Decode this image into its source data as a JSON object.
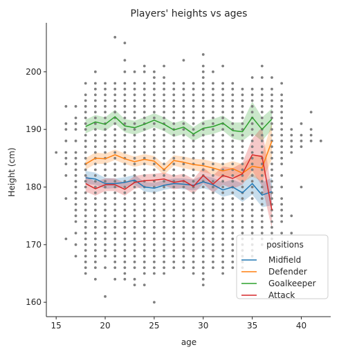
{
  "chart_data": {
    "type": "line",
    "title": "Players' heights vs ages",
    "xlabel": "age",
    "ylabel": "Height (cm)",
    "xlim": [
      14,
      43
    ],
    "ylim": [
      157.5,
      208.5
    ],
    "x_ticks": [
      15,
      20,
      25,
      30,
      35,
      40
    ],
    "y_ticks": [
      160,
      170,
      180,
      190,
      200
    ],
    "grid": false,
    "legend": {
      "title": "positions",
      "placement": "bottom-right"
    },
    "colors": {
      "scatter": "#7f7f7f",
      "Midfield": "#1f77b4",
      "Defender": "#ff7f0e",
      "Goalkeeper": "#2ca02c",
      "Attack": "#d62728"
    },
    "x": [
      18,
      19,
      20,
      21,
      22,
      23,
      24,
      25,
      26,
      27,
      28,
      29,
      30,
      31,
      32,
      33,
      34,
      35,
      36,
      37
    ],
    "series": [
      {
        "name": "Midfield",
        "values": [
          181.6,
          181.4,
          180.6,
          180.6,
          180.8,
          181.2,
          180.0,
          179.8,
          180.3,
          180.6,
          180.5,
          180.3,
          180.9,
          180.4,
          179.5,
          180.0,
          179.0,
          180.6,
          178.6,
          179.2
        ],
        "ci_low": [
          180.5,
          180.4,
          179.7,
          179.8,
          180.0,
          180.4,
          179.2,
          179.0,
          179.5,
          179.8,
          179.6,
          179.4,
          179.8,
          179.3,
          178.3,
          178.7,
          177.4,
          178.7,
          176.5,
          176.8
        ],
        "ci_high": [
          182.8,
          182.5,
          181.6,
          181.5,
          181.7,
          182.1,
          180.9,
          180.7,
          181.2,
          181.5,
          181.5,
          181.3,
          182.0,
          181.6,
          180.8,
          181.3,
          180.6,
          182.5,
          180.8,
          181.6
        ]
      },
      {
        "name": "Defender",
        "values": [
          184.0,
          185.0,
          184.9,
          185.6,
          184.9,
          184.4,
          184.8,
          184.5,
          183.0,
          184.6,
          184.3,
          183.9,
          183.7,
          183.3,
          182.8,
          183.2,
          182.4,
          183.6,
          183.3,
          188.0
        ],
        "ci_low": [
          183.0,
          184.0,
          184.0,
          184.7,
          184.0,
          183.5,
          183.9,
          183.6,
          182.1,
          183.7,
          183.3,
          182.9,
          182.6,
          182.2,
          181.6,
          181.9,
          180.8,
          181.8,
          181.0,
          184.8
        ],
        "ci_high": [
          185.0,
          186.0,
          185.8,
          186.5,
          185.8,
          185.3,
          185.7,
          185.4,
          183.9,
          185.5,
          185.3,
          184.9,
          184.8,
          184.4,
          184.0,
          184.5,
          184.0,
          185.4,
          185.6,
          191.2
        ]
      },
      {
        "name": "Goalkeeper",
        "values": [
          190.5,
          191.3,
          190.9,
          192.2,
          190.6,
          190.3,
          190.9,
          191.6,
          190.9,
          189.9,
          190.4,
          189.2,
          190.2,
          190.5,
          191.1,
          189.8,
          189.6,
          192.1,
          190.0,
          191.8
        ],
        "ci_low": [
          189.3,
          190.1,
          189.7,
          191.0,
          189.5,
          189.1,
          189.7,
          190.4,
          189.7,
          188.7,
          189.2,
          188.0,
          188.9,
          189.2,
          189.8,
          188.4,
          188.0,
          189.3,
          188.0,
          190.0
        ],
        "ci_high": [
          191.7,
          192.5,
          192.1,
          193.4,
          191.8,
          191.5,
          192.1,
          192.8,
          192.1,
          191.1,
          191.6,
          190.4,
          191.5,
          191.8,
          192.4,
          191.2,
          191.2,
          194.8,
          192.1,
          193.6
        ]
      },
      {
        "name": "Attack",
        "values": [
          180.6,
          179.7,
          180.4,
          180.4,
          179.6,
          180.8,
          181.1,
          181.2,
          181.4,
          180.8,
          181.1,
          180.1,
          182.0,
          180.5,
          182.0,
          181.5,
          182.3,
          185.6,
          185.3,
          176.0
        ],
        "ci_low": [
          179.2,
          178.5,
          179.3,
          179.3,
          178.5,
          179.7,
          180.0,
          180.1,
          180.3,
          179.6,
          179.9,
          178.8,
          180.6,
          179.0,
          180.4,
          179.7,
          180.4,
          182.8,
          180.2,
          172.8
        ],
        "ci_high": [
          182.0,
          180.9,
          181.5,
          181.5,
          180.7,
          181.9,
          182.2,
          182.3,
          182.5,
          182.0,
          182.3,
          181.4,
          183.4,
          182.0,
          183.6,
          183.3,
          184.2,
          188.4,
          190.4,
          179.2
        ]
      }
    ],
    "scatter_columns": [
      {
        "x": 15,
        "y": [
          186
        ]
      },
      {
        "x": 16,
        "y": [
          171,
          178,
          182,
          184,
          185,
          186,
          188,
          190,
          191,
          194
        ]
      },
      {
        "x": 17,
        "y": [
          168,
          170,
          172,
          174,
          175,
          176,
          177,
          178,
          179,
          180,
          181,
          182,
          183,
          184,
          185,
          186,
          188,
          190,
          191,
          192,
          194
        ]
      },
      {
        "x": 18,
        "y": [
          165,
          166,
          167,
          168,
          169,
          170,
          171,
          172,
          173,
          174,
          175,
          176,
          177,
          178,
          179,
          180,
          181,
          182,
          183,
          184,
          185,
          186,
          187,
          188,
          189,
          190,
          191,
          192,
          193,
          194,
          195,
          196,
          198
        ]
      },
      {
        "x": 19,
        "y": [
          164,
          166,
          167,
          168,
          169,
          170,
          171,
          172,
          173,
          174,
          175,
          176,
          177,
          178,
          179,
          180,
          181,
          182,
          183,
          184,
          185,
          186,
          187,
          188,
          189,
          190,
          191,
          192,
          193,
          194,
          195,
          196,
          197,
          198,
          200
        ]
      },
      {
        "x": 20,
        "y": [
          161,
          166,
          168,
          169,
          170,
          171,
          172,
          173,
          174,
          175,
          176,
          177,
          178,
          179,
          180,
          181,
          182,
          183,
          184,
          185,
          186,
          187,
          188,
          189,
          190,
          191,
          192,
          193,
          194,
          195,
          196,
          197,
          198
        ]
      },
      {
        "x": 21,
        "y": [
          164,
          166,
          167,
          168,
          169,
          170,
          171,
          172,
          173,
          174,
          175,
          176,
          177,
          178,
          179,
          180,
          181,
          182,
          183,
          184,
          185,
          186,
          187,
          188,
          189,
          190,
          191,
          192,
          193,
          194,
          195,
          196,
          197,
          198,
          206
        ]
      },
      {
        "x": 22,
        "y": [
          164,
          165,
          166,
          167,
          168,
          169,
          170,
          171,
          172,
          173,
          174,
          175,
          176,
          177,
          178,
          179,
          180,
          181,
          182,
          183,
          184,
          185,
          186,
          187,
          188,
          189,
          190,
          191,
          192,
          193,
          194,
          195,
          196,
          197,
          198,
          200,
          202,
          205
        ]
      },
      {
        "x": 23,
        "y": [
          163,
          164,
          166,
          167,
          168,
          169,
          170,
          171,
          172,
          173,
          174,
          175,
          176,
          177,
          178,
          179,
          180,
          181,
          182,
          183,
          184,
          185,
          186,
          187,
          188,
          189,
          190,
          191,
          192,
          193,
          194,
          195,
          196,
          197,
          198,
          200
        ]
      },
      {
        "x": 24,
        "y": [
          163,
          165,
          166,
          167,
          168,
          169,
          170,
          171,
          172,
          173,
          174,
          175,
          176,
          177,
          178,
          179,
          180,
          181,
          182,
          183,
          184,
          185,
          186,
          187,
          188,
          189,
          190,
          191,
          192,
          193,
          194,
          195,
          196,
          197,
          198,
          200,
          201
        ]
      },
      {
        "x": 25,
        "y": [
          160,
          165,
          166,
          167,
          168,
          169,
          170,
          171,
          172,
          173,
          174,
          175,
          176,
          177,
          178,
          179,
          180,
          181,
          182,
          183,
          184,
          185,
          186,
          187,
          188,
          189,
          190,
          191,
          192,
          193,
          194,
          195,
          196,
          197,
          198,
          199,
          200
        ]
      },
      {
        "x": 26,
        "y": [
          165,
          166,
          167,
          168,
          169,
          170,
          171,
          172,
          173,
          174,
          175,
          176,
          177,
          178,
          179,
          180,
          181,
          182,
          183,
          184,
          185,
          186,
          187,
          188,
          189,
          190,
          191,
          192,
          193,
          194,
          195,
          196,
          197,
          198,
          199,
          201
        ]
      },
      {
        "x": 27,
        "y": [
          166,
          167,
          168,
          169,
          170,
          171,
          172,
          173,
          174,
          175,
          176,
          177,
          178,
          179,
          180,
          181,
          182,
          183,
          184,
          185,
          186,
          187,
          188,
          189,
          190,
          191,
          192,
          193,
          194,
          195,
          196,
          197,
          198
        ]
      },
      {
        "x": 28,
        "y": [
          166,
          167,
          168,
          169,
          170,
          171,
          172,
          173,
          174,
          175,
          176,
          177,
          178,
          179,
          180,
          181,
          182,
          183,
          184,
          185,
          186,
          187,
          188,
          189,
          190,
          191,
          192,
          193,
          194,
          195,
          196,
          197,
          198,
          202
        ]
      },
      {
        "x": 29,
        "y": [
          165,
          166,
          167,
          168,
          169,
          170,
          171,
          172,
          173,
          174,
          175,
          176,
          177,
          178,
          179,
          180,
          181,
          182,
          183,
          184,
          185,
          186,
          187,
          188,
          189,
          190,
          191,
          192,
          193,
          194,
          195,
          196,
          197,
          198
        ]
      },
      {
        "x": 30,
        "y": [
          163,
          164,
          165,
          166,
          167,
          168,
          169,
          170,
          171,
          172,
          173,
          174,
          175,
          176,
          177,
          178,
          179,
          180,
          181,
          182,
          183,
          184,
          185,
          186,
          187,
          188,
          189,
          190,
          191,
          192,
          193,
          194,
          195,
          196,
          197,
          198,
          199,
          200,
          201,
          203
        ]
      },
      {
        "x": 31,
        "y": [
          166,
          167,
          168,
          169,
          170,
          171,
          172,
          173,
          174,
          175,
          176,
          177,
          178,
          179,
          180,
          181,
          182,
          183,
          184,
          185,
          186,
          187,
          188,
          189,
          190,
          191,
          192,
          193,
          194,
          195,
          196,
          197,
          198,
          200
        ]
      },
      {
        "x": 32,
        "y": [
          165,
          166,
          167,
          168,
          169,
          170,
          171,
          172,
          173,
          174,
          175,
          176,
          177,
          178,
          179,
          180,
          181,
          182,
          183,
          184,
          185,
          186,
          187,
          188,
          189,
          190,
          191,
          192,
          193,
          194,
          195,
          196,
          197,
          198,
          201
        ]
      },
      {
        "x": 33,
        "y": [
          166,
          167,
          168,
          169,
          170,
          171,
          172,
          173,
          174,
          175,
          176,
          177,
          178,
          179,
          180,
          181,
          182,
          183,
          184,
          185,
          186,
          187,
          188,
          189,
          190,
          191,
          192,
          193,
          194,
          195,
          196,
          197,
          198
        ]
      },
      {
        "x": 34,
        "y": [
          166,
          167,
          168,
          169,
          170,
          171,
          172,
          173,
          174,
          175,
          176,
          177,
          178,
          179,
          180,
          181,
          182,
          183,
          184,
          185,
          186,
          187,
          188,
          189,
          190,
          191,
          192,
          193,
          194,
          195,
          196,
          197
        ]
      },
      {
        "x": 35,
        "y": [
          168,
          169,
          170,
          171,
          172,
          173,
          174,
          175,
          176,
          177,
          178,
          179,
          180,
          181,
          182,
          183,
          184,
          185,
          186,
          187,
          188,
          189,
          190,
          191,
          192,
          193,
          194,
          195,
          196,
          197,
          199
        ]
      },
      {
        "x": 36,
        "y": [
          170,
          171,
          172,
          173,
          174,
          175,
          176,
          177,
          178,
          179,
          180,
          181,
          182,
          183,
          184,
          185,
          186,
          187,
          188,
          189,
          190,
          191,
          192,
          193,
          194,
          195,
          196,
          197,
          199,
          201
        ]
      },
      {
        "x": 37,
        "y": [
          171,
          172,
          173,
          174,
          175,
          176,
          177,
          178,
          179,
          180,
          181,
          182,
          183,
          184,
          185,
          186,
          187,
          188,
          189,
          190,
          191,
          192,
          193,
          194,
          195,
          196,
          197,
          199
        ]
      },
      {
        "x": 38,
        "y": [
          172,
          174,
          175,
          176,
          177,
          178,
          180,
          182,
          184,
          185,
          186,
          187,
          188,
          189,
          190,
          191,
          192,
          193,
          194,
          195,
          196,
          198
        ]
      },
      {
        "x": 39,
        "y": [
          172,
          175,
          186,
          187,
          188,
          189,
          190
        ]
      },
      {
        "x": 40,
        "y": [
          180,
          187,
          188,
          189,
          191
        ]
      },
      {
        "x": 41,
        "y": [
          188,
          189,
          190,
          193
        ]
      },
      {
        "x": 42,
        "y": [
          188
        ]
      }
    ]
  }
}
